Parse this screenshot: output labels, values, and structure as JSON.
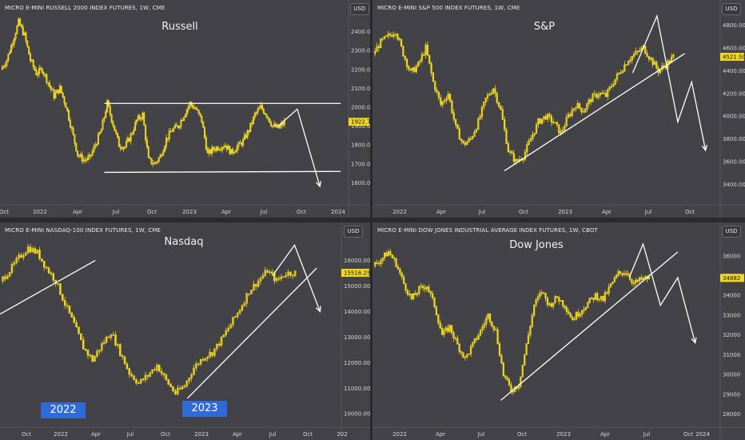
{
  "colors": {
    "candle": "#f0d722",
    "bg": "#424247",
    "line": "#ffffff",
    "yearbox": "#2f6ad9"
  },
  "chart_data": [
    {
      "type": "candlestick",
      "title": "MICRO E-MINI RUSSELL 2000 INDEX FUTURES, 1W, CME",
      "name": "Russell",
      "currency": "USD",
      "last_price": "1922.7",
      "ylim": [
        1500,
        2500
      ],
      "y_ticks": [
        "2400.0",
        "2300.0",
        "2200.0",
        "2100.0",
        "2000.0",
        "1900.0",
        "1800.0",
        "1700.0",
        "1600.0"
      ],
      "y_tick_values": [
        2400,
        2300,
        2200,
        2100,
        2000,
        1900,
        1800,
        1700,
        1600
      ],
      "x_ticks": [
        "Oct",
        "2022",
        "Apr",
        "Jul",
        "Oct",
        "2023",
        "Apr",
        "Jul",
        "Oct",
        "2024"
      ],
      "close_path": [
        2200,
        2250,
        2350,
        2450,
        2380,
        2250,
        2180,
        2200,
        2130,
        2060,
        2100,
        2010,
        1880,
        1750,
        1720,
        1730,
        1800,
        1880,
        2020,
        1910,
        1800,
        1790,
        1850,
        1930,
        1960,
        1720,
        1700,
        1740,
        1830,
        1880,
        1900,
        1960,
        2020,
        1990,
        1930,
        1750,
        1780,
        1790,
        1800,
        1760,
        1790,
        1820,
        1880,
        1960,
        2000,
        1960,
        1900,
        1890,
        1920
      ],
      "lines": [
        {
          "kind": "channel-top",
          "from": [
            0.3,
            2020
          ],
          "to": [
            0.98,
            2020
          ]
        },
        {
          "kind": "channel-bottom",
          "from": [
            0.3,
            1655
          ],
          "to": [
            0.98,
            1660
          ]
        },
        {
          "kind": "projection",
          "points": [
            [
              0.8,
              1900
            ],
            [
              0.855,
              1990
            ],
            [
              0.92,
              1580
            ]
          ]
        }
      ]
    },
    {
      "type": "candlestick",
      "title": "MICRO E-MINI S&P 500 INDEX FUTURES, 1W, CME",
      "name": "S&P",
      "currency": "USD",
      "last_price": "4521.50",
      "ylim": [
        3250,
        4950
      ],
      "y_ticks": [
        "4800.00",
        "4600.00",
        "4400.00",
        "4200.00",
        "4000.00",
        "3800.00",
        "3600.00",
        "3400.00"
      ],
      "y_tick_values": [
        4800,
        4600,
        4400,
        4200,
        4000,
        3800,
        3600,
        3400
      ],
      "x_ticks": [
        "2022",
        "Apr",
        "Jul",
        "Oct",
        "2023",
        "Apr",
        "Jul",
        "Oct"
      ],
      "close_path": [
        4550,
        4650,
        4700,
        4750,
        4550,
        4380,
        4450,
        4600,
        4300,
        4100,
        4200,
        3900,
        3750,
        3800,
        3950,
        4150,
        4250,
        4050,
        3700,
        3600,
        3650,
        3800,
        3950,
        4000,
        3950,
        3850,
        4000,
        4100,
        4050,
        4150,
        4200,
        4180,
        4300,
        4400,
        4500,
        4550,
        4600,
        4500,
        4400,
        4450,
        4521
      ],
      "lines": [
        {
          "kind": "trend",
          "from": [
            0.38,
            3520
          ],
          "to": [
            0.9,
            4550
          ]
        },
        {
          "kind": "projection",
          "points": [
            [
              0.75,
              4380
            ],
            [
              0.82,
              4880
            ],
            [
              0.88,
              3950
            ],
            [
              0.92,
              4300
            ],
            [
              0.96,
              3700
            ]
          ]
        }
      ]
    },
    {
      "type": "candlestick",
      "title": "MICRO E-MINI NASDAQ-100 INDEX FUTURES, 1W, CME",
      "name": "Nasdaq",
      "currency": "USD",
      "last_price": "15516.25",
      "ylim": [
        9600,
        16800
      ],
      "y_ticks": [
        "16000.00",
        "15000.00",
        "14000.00",
        "13000.00",
        "12000.00",
        "11000.00",
        "10000.00"
      ],
      "y_tick_values": [
        16000,
        15000,
        14000,
        13000,
        12000,
        11000,
        10000
      ],
      "x_ticks": [
        "Oct",
        "2022",
        "Apr",
        "Jul",
        "Oct",
        "2023",
        "Apr",
        "Jul",
        "Oct",
        "202"
      ],
      "year_boxes": [
        "2022",
        "2023"
      ],
      "close_path": [
        15200,
        15600,
        16100,
        16500,
        16300,
        15700,
        15200,
        14300,
        13500,
        12600,
        12100,
        12700,
        13200,
        12400,
        11600,
        11200,
        11500,
        11900,
        11300,
        10800,
        11100,
        11800,
        12200,
        12400,
        12900,
        13500,
        14100,
        14800,
        15200,
        15600,
        15200,
        15500,
        15516
      ],
      "lines": [
        {
          "kind": "trend",
          "from": [
            0.0,
            13900
          ],
          "to": [
            0.28,
            16000
          ]
        },
        {
          "kind": "trend",
          "from": [
            0.55,
            10600
          ],
          "to": [
            0.93,
            15700
          ]
        },
        {
          "kind": "projection",
          "points": [
            [
              0.8,
              15400
            ],
            [
              0.865,
              16600
            ],
            [
              0.94,
              14000
            ]
          ]
        }
      ]
    },
    {
      "type": "candlestick",
      "title": "MICRO E-MINI DOW JONES INDUSTRIAL AVERAGE INDEX FUTURES, 1W, CBOT",
      "name": "Dow Jones",
      "currency": "USD",
      "last_price": "34882",
      "ylim": [
        27500,
        36800
      ],
      "y_ticks": [
        "36000",
        "35000",
        "34000",
        "33000",
        "32000",
        "31000",
        "30000",
        "29000",
        "28000"
      ],
      "y_tick_values": [
        36000,
        35000,
        34000,
        33000,
        32000,
        31000,
        30000,
        29000,
        28000
      ],
      "x_ticks": [
        "2022",
        "Apr",
        "Jul",
        "Oct",
        "2023",
        "Apr",
        "Jul",
        "Oct",
        "2024"
      ],
      "close_path": [
        35500,
        35800,
        36200,
        35600,
        34600,
        33800,
        34300,
        34500,
        33500,
        32000,
        32400,
        31500,
        30800,
        31500,
        32200,
        33000,
        32200,
        30000,
        29200,
        29500,
        31500,
        33500,
        34200,
        33500,
        33900,
        33500,
        32800,
        33200,
        33600,
        34000,
        33800,
        34500,
        35100,
        35200,
        34600,
        34800,
        34882
      ],
      "lines": [
        {
          "kind": "trend",
          "from": [
            0.37,
            28700
          ],
          "to": [
            0.88,
            36200
          ]
        },
        {
          "kind": "projection",
          "points": [
            [
              0.74,
              34900
            ],
            [
              0.78,
              36600
            ],
            [
              0.83,
              33500
            ],
            [
              0.88,
              34900
            ],
            [
              0.93,
              31600
            ]
          ]
        }
      ]
    }
  ]
}
